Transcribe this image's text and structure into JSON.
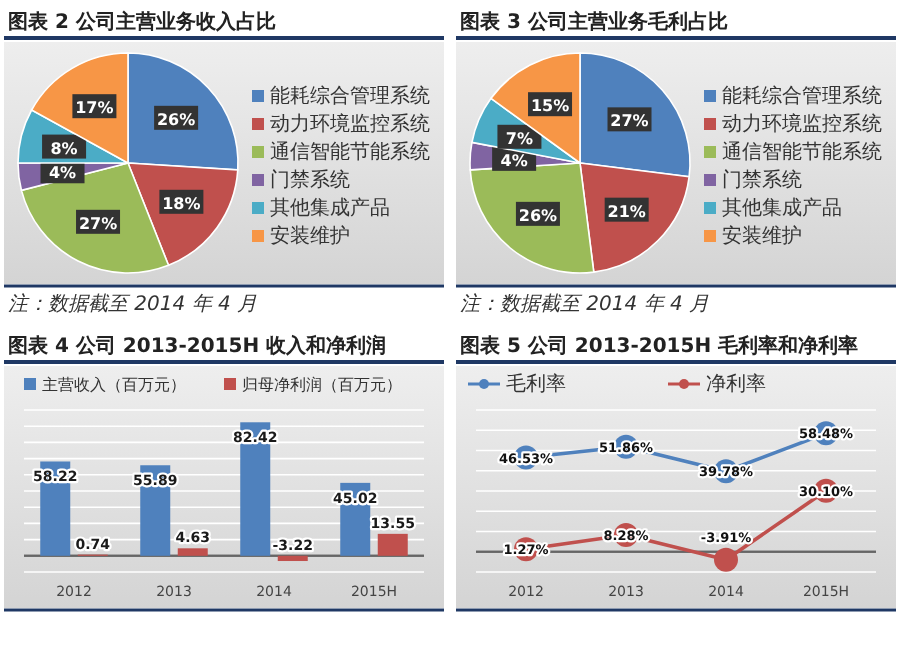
{
  "chart_data": [
    {
      "type": "pie",
      "title": "图表 2  公司主营业务收入占比",
      "categories": [
        "能耗综合管理系统",
        "动力环境监控系统",
        "通信智能节能系统",
        "门禁系统",
        "其他集成产品",
        "安装维护"
      ],
      "values": [
        26,
        18,
        27,
        4,
        8,
        17
      ],
      "value_labels": [
        "26%",
        "18%",
        "27%",
        "4%",
        "8%",
        "17%"
      ],
      "colors": [
        "#4f81bd",
        "#c0504d",
        "#9bbb59",
        "#8064a2",
        "#4bacc6",
        "#f79646"
      ],
      "legend": "right",
      "annotations": [
        "注：数据截至 2014 年 4 月"
      ]
    },
    {
      "type": "pie",
      "title": "图表 3  公司主营业务毛利占比",
      "categories": [
        "能耗综合管理系统",
        "动力环境监控系统",
        "通信智能节能系统",
        "门禁系统",
        "其他集成产品",
        "安装维护"
      ],
      "values": [
        27,
        21,
        26,
        4,
        7,
        15
      ],
      "value_labels": [
        "27%",
        "21%",
        "26%",
        "4%",
        "7%",
        "15%"
      ],
      "colors": [
        "#4f81bd",
        "#c0504d",
        "#9bbb59",
        "#8064a2",
        "#4bacc6",
        "#f79646"
      ],
      "legend": "right",
      "annotations": [
        "注：数据截至 2014 年 4 月"
      ]
    },
    {
      "type": "bar",
      "title": "图表 4  公司 2013-2015H 收入和净利润",
      "categories": [
        "2012",
        "2013",
        "2014",
        "2015H"
      ],
      "series": [
        {
          "name": "主营收入（百万元）",
          "color": "#4f81bd",
          "values": [
            58.22,
            55.89,
            82.42,
            45.02
          ]
        },
        {
          "name": "归母净利润（百万元）",
          "color": "#c0504d",
          "values": [
            0.74,
            4.63,
            -3.22,
            13.55
          ]
        }
      ],
      "data_labels": true,
      "legend": "top",
      "grid": "y",
      "ylim": [
        -10,
        90
      ],
      "yticks": [
        {
          "value": -10,
          "label": null
        },
        {
          "value": 0,
          "label": null
        },
        {
          "value": 10,
          "label": null
        },
        {
          "value": 20,
          "label": null
        },
        {
          "value": 30,
          "label": null
        },
        {
          "value": 40,
          "label": null
        },
        {
          "value": 50,
          "label": null
        },
        {
          "value": 60,
          "label": null
        },
        {
          "value": 70,
          "label": null
        },
        {
          "value": 80,
          "label": null
        },
        {
          "value": 90,
          "label": null
        }
      ],
      "tick_labels": "x"
    },
    {
      "type": "line",
      "title": "图表 5  公司 2013-2015H 毛利率和净利率",
      "categories": [
        "2012",
        "2013",
        "2014",
        "2015H"
      ],
      "series": [
        {
          "name": "毛利率",
          "color": "#4f81bd",
          "values": [
            46.53,
            51.86,
            39.78,
            58.48
          ],
          "value_labels": [
            "46.53%",
            "51.86%",
            "39.78%",
            "58.48%"
          ]
        },
        {
          "name": "净利率",
          "color": "#c0504d",
          "values": [
            1.27,
            8.28,
            -3.91,
            30.1
          ],
          "value_labels": [
            "1.27%",
            "8.28%",
            "-3.91%",
            "30.10%"
          ]
        }
      ],
      "legend": "top",
      "marker": "circle",
      "grid": "y",
      "ylim": [
        -10,
        70
      ],
      "yticks": [
        {
          "value": -10,
          "label": null
        },
        {
          "value": 0,
          "label": null
        },
        {
          "value": 10,
          "label": null
        },
        {
          "value": 20,
          "label": null
        },
        {
          "value": 30,
          "label": null
        },
        {
          "value": 40,
          "label": null
        },
        {
          "value": 50,
          "label": null
        },
        {
          "value": 60,
          "label": null
        },
        {
          "value": 70,
          "label": null
        }
      ],
      "tick_labels": "x"
    }
  ]
}
